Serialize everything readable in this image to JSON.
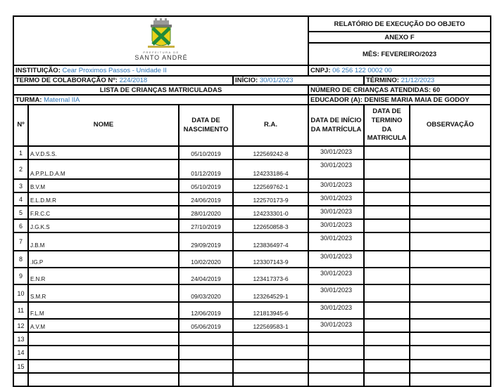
{
  "logo": {
    "line1": "PREFEITURA DE",
    "line2": "SANTO ANDRÉ"
  },
  "header": {
    "title": "RELATÓRIO DE EXECUÇÃO DO OBJETO",
    "annex": "ANEXO F",
    "month": "MÊS: FEVEREIRO/2023"
  },
  "info": {
    "institution_label": "INSTITUIÇÃO:",
    "institution_value": "Cear Proximos Passos - Unidade II",
    "cnpj_label": "CNPJ:",
    "cnpj_value": "06 256 122 0002 00",
    "term_label": "TERMO DE COLABORAÇÃO Nº:",
    "term_value": "224/2018",
    "start_label": "INÍCIO:",
    "start_value": "30/01/2023",
    "end_label": "TÉRMINO:",
    "end_value": "21/12/2023",
    "list_title": "LISTA DE CRIANÇAS MATRICULADAS",
    "children_count": "NÚMERO DE CRIANÇAS ATENDIDAS: 60",
    "class_label": "TURMA:",
    "class_value": "Maternal IIA",
    "educator": "EDUCADOR (A): DENISE MARIA MAIA DE GODOY"
  },
  "columns": [
    "Nº",
    "NOME",
    "DATA DE NASCIMENTO",
    "R.A.",
    "DATA DE INÍCIO DA MATRÍCULA",
    "DATA DE TERMINO DA MATRICULA",
    "OBSERVAÇÃO"
  ],
  "rows": [
    {
      "n": "1",
      "name": "A.V.D.S.S.",
      "birth": "05/10/2019",
      "ra": "122569242-8",
      "start": "30/01/2023",
      "end": "",
      "obs": ""
    },
    {
      "n": "2",
      "name": "A.P.P.L.D.A.M",
      "birth": "01/12/2019",
      "ra": "124233186-4",
      "start": "30/01/2023",
      "end": "",
      "obs": ""
    },
    {
      "n": "3",
      "name": "B.V.M",
      "birth": "05/10/2019",
      "ra": "122569762-1",
      "start": "30/01/2023",
      "end": "",
      "obs": ""
    },
    {
      "n": "4",
      "name": "E.L.D.M.R",
      "birth": "24/06/2019",
      "ra": "122570173-9",
      "start": "30/01/2023",
      "end": "",
      "obs": ""
    },
    {
      "n": "5",
      "name": "F.R.C.C",
      "birth": "28/01/2020",
      "ra": "124233301-0",
      "start": "30/01/2023",
      "end": "",
      "obs": ""
    },
    {
      "n": "6",
      "name": "J.G.K.S",
      "birth": "27/10/2019",
      "ra": "122650858-3",
      "start": "30/01/2023",
      "end": "",
      "obs": ""
    },
    {
      "n": "7",
      "name": "J.B.M",
      "birth": "29/09/2019",
      "ra": "123836497-4",
      "start": "30/01/2023",
      "end": "",
      "obs": ""
    },
    {
      "n": "8",
      "name": ".IG.P",
      "birth": "10/02/2020",
      "ra": "123307143-9",
      "start": "30/01/2023",
      "end": "",
      "obs": ""
    },
    {
      "n": "9",
      "name": "E.N.R",
      "birth": "24/04/2019",
      "ra": "123417373-6",
      "start": "30/01/2023",
      "end": "",
      "obs": ""
    },
    {
      "n": "10",
      "name": "S.M.R",
      "birth": "09/03/2020",
      "ra": "123264529-1",
      "start": "30/01/2023",
      "end": "",
      "obs": ""
    },
    {
      "n": "11",
      "name": "F.L.M",
      "birth": "12/06/2019",
      "ra": "121813945-6",
      "start": "30/01/2023",
      "end": "",
      "obs": ""
    },
    {
      "n": "12",
      "name": "A.V.M",
      "birth": "05/06/2019",
      "ra": "122569583-1",
      "start": "30/01/2023",
      "end": "",
      "obs": ""
    },
    {
      "n": "13",
      "name": "",
      "birth": "",
      "ra": "",
      "start": "",
      "end": "",
      "obs": ""
    },
    {
      "n": "14",
      "name": "",
      "birth": "",
      "ra": "",
      "start": "",
      "end": "",
      "obs": ""
    },
    {
      "n": "15",
      "name": "",
      "birth": "",
      "ra": "",
      "start": "",
      "end": "",
      "obs": ""
    },
    {
      "n": "",
      "name": "",
      "birth": "",
      "ra": "",
      "start": "",
      "end": "",
      "obs": ""
    }
  ]
}
